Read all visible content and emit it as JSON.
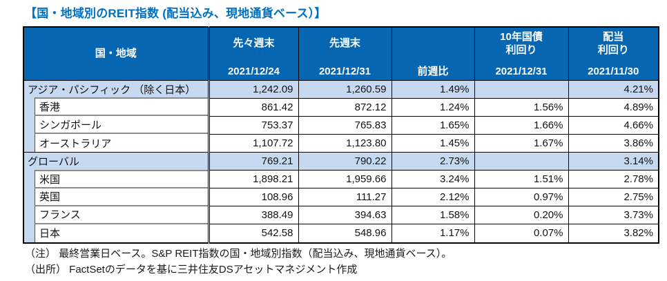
{
  "title": "【国・地域別のREIT指数 (配当込み、現地通貨ベース）】",
  "colors": {
    "title_text": "#0070C0",
    "header_bg": "#0766B1",
    "header_text": "#FFFFFF",
    "subtotal_row_bg": "#C6D9F1",
    "grid_border": "#000000",
    "child_name_border": "#8C8C8C"
  },
  "table": {
    "columns": [
      {
        "id": "name",
        "label": "国・地域"
      },
      {
        "id": "prev2",
        "label": "先々週末",
        "date": "2021/12/24"
      },
      {
        "id": "prev",
        "label": "先週末",
        "date": "2021/12/31"
      },
      {
        "id": "wow",
        "label": "前週比"
      },
      {
        "id": "bond10y",
        "label": "10年国債",
        "label2": "利回り",
        "date": "2021/12/31"
      },
      {
        "id": "div",
        "label": "配当",
        "label2": "利回り",
        "date": "2021/11/30"
      }
    ],
    "rows": [
      {
        "name": "アジア・パシフィック （除く日本）",
        "type": "subtotal",
        "values": [
          "1,242.09",
          "1,260.59",
          "1.49%",
          "",
          "4.21%"
        ]
      },
      {
        "name": "香港",
        "type": "child",
        "values": [
          "861.42",
          "872.12",
          "1.24%",
          "1.56%",
          "4.89%"
        ]
      },
      {
        "name": "シンガポール",
        "type": "child",
        "values": [
          "753.37",
          "765.83",
          "1.65%",
          "1.66%",
          "4.66%"
        ]
      },
      {
        "name": "オーストラリア",
        "type": "child",
        "values": [
          "1,107.72",
          "1,123.80",
          "1.45%",
          "1.67%",
          "3.86%"
        ]
      },
      {
        "name": "グローバル",
        "type": "subtotal",
        "values": [
          "769.21",
          "790.22",
          "2.73%",
          "",
          "3.14%"
        ]
      },
      {
        "name": "米国",
        "type": "child",
        "values": [
          "1,898.21",
          "1,959.66",
          "3.24%",
          "1.51%",
          "2.78%"
        ]
      },
      {
        "name": "英国",
        "type": "child",
        "values": [
          "108.96",
          "111.27",
          "2.12%",
          "0.97%",
          "2.75%"
        ]
      },
      {
        "name": "フランス",
        "type": "child",
        "values": [
          "388.49",
          "394.63",
          "1.58%",
          "0.20%",
          "3.73%"
        ]
      },
      {
        "name": "日本",
        "type": "child",
        "values": [
          "542.58",
          "548.96",
          "1.17%",
          "0.07%",
          "3.82%"
        ]
      }
    ]
  },
  "notes": [
    "（注） 最終営業日ベース。S&P REIT指数の国・地域別指数（配当込み、現地通貨ベース）。",
    "（出所） FactSetのデータを基に三井住友DSアセットマネジメント作成"
  ]
}
